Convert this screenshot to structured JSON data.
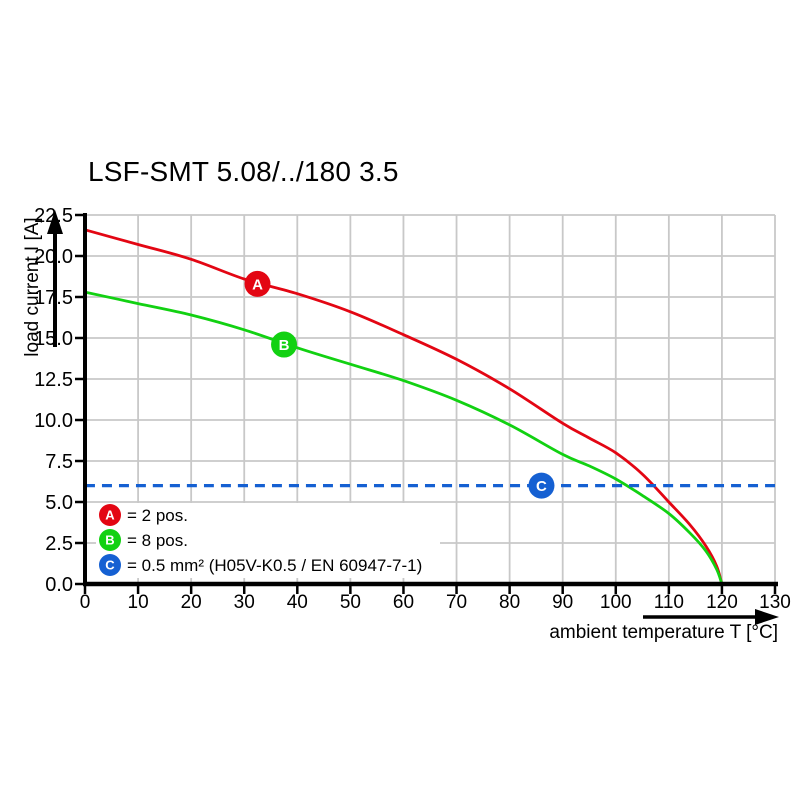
{
  "title": "LSF-SMT 5.08/../180 3.5",
  "colors": {
    "curve_a": "#e30613",
    "curve_b": "#12d112",
    "curve_c": "#1560d2",
    "grid": "#c8c8c8",
    "axis": "#000000",
    "marker_letter": "#ffffff"
  },
  "chart_data": {
    "type": "line",
    "title": "LSF-SMT 5.08/../180 3.5",
    "xlabel": "ambient temperature T [°C]",
    "ylabel": "load current I [A]",
    "xlim": [
      0,
      130
    ],
    "ylim": [
      0,
      22.5
    ],
    "xticks": [
      0,
      10,
      20,
      30,
      40,
      50,
      60,
      70,
      80,
      90,
      100,
      110,
      120,
      130
    ],
    "yticks": [
      0,
      2.5,
      5,
      7.5,
      10,
      12.5,
      15,
      17.5,
      20,
      22.5
    ],
    "grid": true,
    "legend_position": "lower-left-inside",
    "series": [
      {
        "id": "A",
        "name": "2 pos.",
        "color": "#e30613",
        "style": "solid",
        "points": [
          [
            0,
            21.6
          ],
          [
            10,
            20.7
          ],
          [
            20,
            19.8
          ],
          [
            30,
            18.6
          ],
          [
            40,
            17.7
          ],
          [
            50,
            16.6
          ],
          [
            60,
            15.2
          ],
          [
            70,
            13.7
          ],
          [
            80,
            11.9
          ],
          [
            90,
            9.8
          ],
          [
            95,
            8.9
          ],
          [
            100,
            8.0
          ],
          [
            105,
            6.7
          ],
          [
            110,
            5.0
          ],
          [
            114,
            3.6
          ],
          [
            117,
            2.3
          ],
          [
            119,
            1.1
          ],
          [
            120,
            0
          ]
        ],
        "marker": {
          "label": "A",
          "t": 32.5,
          "i": 18.3
        }
      },
      {
        "id": "B",
        "name": "8 pos.",
        "color": "#12d112",
        "style": "solid",
        "points": [
          [
            0,
            17.8
          ],
          [
            10,
            17.1
          ],
          [
            20,
            16.4
          ],
          [
            30,
            15.5
          ],
          [
            40,
            14.4
          ],
          [
            50,
            13.4
          ],
          [
            60,
            12.4
          ],
          [
            70,
            11.2
          ],
          [
            80,
            9.7
          ],
          [
            90,
            7.9
          ],
          [
            95,
            7.2
          ],
          [
            100,
            6.4
          ],
          [
            105,
            5.4
          ],
          [
            110,
            4.3
          ],
          [
            114,
            3.1
          ],
          [
            117,
            2.0
          ],
          [
            119,
            0.9
          ],
          [
            120,
            0
          ]
        ],
        "marker": {
          "label": "B",
          "t": 37.5,
          "i": 14.6
        }
      },
      {
        "id": "C",
        "name": "0.5 mm² (H05V-K0.5 / EN 60947-7-1)",
        "color": "#1560d2",
        "style": "dashed",
        "points": [
          [
            0,
            6
          ],
          [
            130,
            6
          ]
        ],
        "marker": {
          "label": "C",
          "t": 86,
          "i": 6.0
        }
      }
    ],
    "legend": [
      {
        "symbol": "A",
        "color": "#e30613",
        "label": "= 2 pos."
      },
      {
        "symbol": "B",
        "color": "#12d112",
        "label": "= 8 pos."
      },
      {
        "symbol": "C",
        "color": "#1560d2",
        "label": "= 0.5 mm² (H05V-K0.5 / EN 60947-7-1)"
      }
    ]
  }
}
